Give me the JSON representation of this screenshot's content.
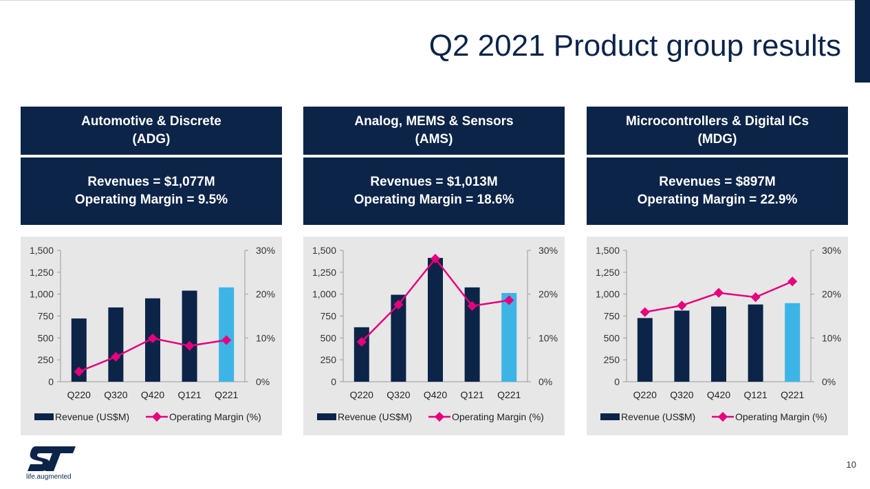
{
  "slide": {
    "title": "Q2 2021 Product group results",
    "page_number": "10",
    "tagline": "life.augmented"
  },
  "colors": {
    "navy": "#0c2448",
    "bar": "#0c2448",
    "bar_highlight": "#3db4e6",
    "margin_line": "#e6007e",
    "chart_bg": "#e7e7e7"
  },
  "groups": [
    {
      "name_line1": "Automotive & Discrete",
      "name_line2": "(ADG)",
      "revenue_text": "Revenues = $1,077M",
      "margin_text": "Operating Margin = 9.5%"
    },
    {
      "name_line1": "Analog, MEMS & Sensors",
      "name_line2": "(AMS)",
      "revenue_text": "Revenues = $1,013M",
      "margin_text": "Operating Margin = 18.6%"
    },
    {
      "name_line1": "Microcontrollers & Digital ICs",
      "name_line2": "(MDG)",
      "revenue_text": "Revenues = $897M",
      "margin_text": "Operating Margin = 22.9%"
    }
  ],
  "chart_data": [
    {
      "type": "bar",
      "categories": [
        "Q220",
        "Q320",
        "Q420",
        "Q121",
        "Q221"
      ],
      "series": [
        {
          "name": "Revenue (US$M)",
          "type": "bar",
          "axis": "left",
          "values": [
            722,
            848,
            952,
            1040,
            1077
          ]
        },
        {
          "name": "Operating Margin (%)",
          "type": "line",
          "axis": "right",
          "values": [
            2.3,
            5.7,
            9.9,
            8.2,
            9.5
          ]
        }
      ],
      "y_left": {
        "min": 0,
        "max": 1500,
        "ticks": [
          "0",
          "250",
          "500",
          "750",
          "1,000",
          "1,250",
          "1,500"
        ]
      },
      "y_right": {
        "min": 0,
        "max": 30,
        "ticks": [
          "0%",
          "10%",
          "20%",
          "30%"
        ]
      },
      "highlight_index": 4,
      "legend": "bottom"
    },
    {
      "type": "bar",
      "categories": [
        "Q220",
        "Q320",
        "Q420",
        "Q121",
        "Q221"
      ],
      "series": [
        {
          "name": "Revenue (US$M)",
          "type": "bar",
          "axis": "left",
          "values": [
            622,
            993,
            1414,
            1077,
            1013
          ]
        },
        {
          "name": "Operating Margin (%)",
          "type": "line",
          "axis": "right",
          "values": [
            9.1,
            17.6,
            28.1,
            17.3,
            18.6
          ]
        }
      ],
      "y_left": {
        "min": 0,
        "max": 1500,
        "ticks": [
          "0",
          "250",
          "500",
          "750",
          "1,000",
          "1,250",
          "1,500"
        ]
      },
      "y_right": {
        "min": 0,
        "max": 30,
        "ticks": [
          "0%",
          "10%",
          "20%",
          "30%"
        ]
      },
      "highlight_index": 4,
      "legend": "bottom"
    },
    {
      "type": "bar",
      "categories": [
        "Q220",
        "Q320",
        "Q420",
        "Q121",
        "Q221"
      ],
      "series": [
        {
          "name": "Revenue (US$M)",
          "type": "bar",
          "axis": "left",
          "values": [
            727,
            812,
            859,
            882,
            897
          ]
        },
        {
          "name": "Operating Margin (%)",
          "type": "line",
          "axis": "right",
          "values": [
            15.9,
            17.4,
            20.3,
            19.3,
            22.9
          ]
        }
      ],
      "y_left": {
        "min": 0,
        "max": 1500,
        "ticks": [
          "0",
          "250",
          "500",
          "750",
          "1,000",
          "1,250",
          "1,500"
        ]
      },
      "y_right": {
        "min": 0,
        "max": 30,
        "ticks": [
          "0%",
          "10%",
          "20%",
          "30%"
        ]
      },
      "highlight_index": 4,
      "legend": "bottom"
    }
  ]
}
